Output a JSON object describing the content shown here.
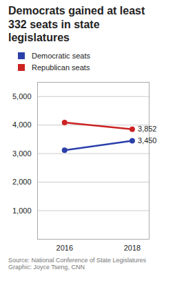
{
  "chart_data": {
    "type": "line",
    "title": "Democrats gained at least\n332 seats in state\nlegislatures",
    "x": [
      2016,
      2018
    ],
    "series": [
      {
        "name": "Democratic seats",
        "color": "#2b3faa",
        "values": [
          3118,
          3450
        ],
        "marker": "circle"
      },
      {
        "name": "Republican seats",
        "color": "#cc2222",
        "values": [
          4090,
          3852
        ],
        "marker": "circle"
      }
    ],
    "annotations": [
      {
        "text": "3,852",
        "x": 2018,
        "y": 3852
      },
      {
        "text": "3,450",
        "x": 2018,
        "y": 3450
      }
    ],
    "xlim": [
      2015.2,
      2018.5
    ],
    "xticks": [
      2016,
      2018
    ],
    "ylim": [
      0,
      5500
    ],
    "yticks": [
      {
        "value": 1000,
        "label": "1,000"
      },
      {
        "value": 2000,
        "label": "2,000"
      },
      {
        "value": 3000,
        "label": "3,000"
      },
      {
        "value": 4000,
        "label": "4,000"
      },
      {
        "value": 5000,
        "label": "5,000"
      }
    ],
    "grid": true,
    "legend": "top",
    "source": "Source: National Conference of State Legislatures\nGraphic: Joyce Tseng, CNN"
  }
}
